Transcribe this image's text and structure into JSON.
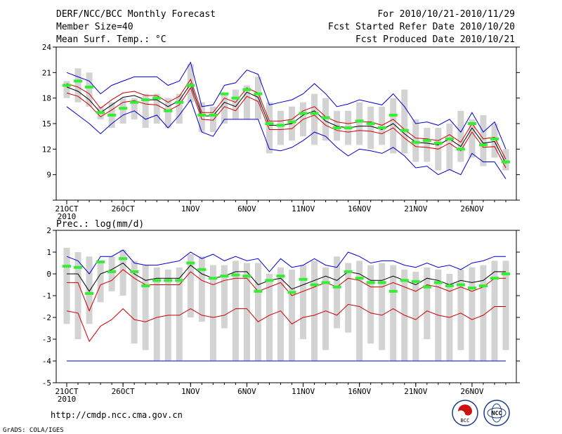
{
  "header": {
    "title": "DERF/NCC/BCC Monthly Forecast",
    "member_size": "Member Size=40",
    "variable": "Mean Surf. Temp.: °C",
    "period": "For 2010/10/21-2010/11/29",
    "started": "Fcst Started Refer Date 2010/10/20",
    "produced": "Fcst Produced Date 2010/10/21"
  },
  "footer": {
    "url": "http://cmdp.ncc.cma.gov.cn",
    "grads": "GrADS: COLA/IGES",
    "logo_bcc": "BCC",
    "logo_ncc": "NCC"
  },
  "colors": {
    "box": "#d3d3d3",
    "envelope": "#0000cc",
    "spread": "#cc0000",
    "mean": "#000000",
    "observed": "#33ee33"
  },
  "chart_data": [
    {
      "type": "line",
      "title": "Mean Surf. Temp.: °C",
      "ylim": [
        6,
        24
      ],
      "yticks": [
        6,
        9,
        12,
        15,
        18,
        21,
        24
      ],
      "ytick_labels": [
        "",
        "9",
        "12",
        "15",
        "18",
        "21",
        "24"
      ],
      "xtick_labels": [
        {
          "day": 1,
          "label": "21OCT",
          "sub": "2010"
        },
        {
          "day": 6,
          "label": "26OCT"
        },
        {
          "day": 12,
          "label": "1NOV"
        },
        {
          "day": 17,
          "label": "6NOV"
        },
        {
          "day": 22,
          "label": "11NOV"
        },
        {
          "day": 27,
          "label": "16NOV"
        },
        {
          "day": 32,
          "label": "21NOV"
        },
        {
          "day": 37,
          "label": "26NOV"
        }
      ],
      "x": [
        1,
        2,
        3,
        4,
        5,
        6,
        7,
        8,
        9,
        10,
        11,
        12,
        13,
        14,
        15,
        16,
        17,
        18,
        19,
        20,
        21,
        22,
        23,
        24,
        25,
        26,
        27,
        28,
        29,
        30,
        31,
        32,
        33,
        34,
        35,
        36,
        37,
        38,
        39,
        40
      ],
      "box_low": [
        18.0,
        17.5,
        17.0,
        15.5,
        14.5,
        15.0,
        15.5,
        14.5,
        15.0,
        14.5,
        15.0,
        17.5,
        14.0,
        14.0,
        15.0,
        15.5,
        15.5,
        15.5,
        11.5,
        12.5,
        13.0,
        13.5,
        12.5,
        13.0,
        13.0,
        12.5,
        12.5,
        12.0,
        12.5,
        11.5,
        11.5,
        10.5,
        10.5,
        9.5,
        9.5,
        10.5,
        11.0,
        10.0,
        11.0,
        9.5
      ],
      "box_high": [
        20.0,
        21.5,
        21.0,
        17.0,
        17.5,
        18.0,
        18.0,
        18.5,
        18.5,
        18.0,
        18.5,
        22.0,
        17.5,
        17.0,
        18.5,
        19.0,
        19.5,
        20.5,
        17.5,
        16.5,
        17.0,
        17.5,
        18.5,
        18.0,
        16.5,
        16.5,
        17.5,
        17.0,
        17.0,
        18.0,
        19.0,
        15.5,
        14.5,
        14.5,
        15.0,
        16.5,
        15.5,
        16.0,
        15.0,
        12.0
      ],
      "series": [
        {
          "name": "upper envelope",
          "color": "#0000cc",
          "values": [
            21.0,
            20.5,
            20.0,
            18.5,
            19.5,
            20.0,
            20.5,
            20.5,
            20.5,
            19.5,
            20.0,
            22.2,
            17.0,
            17.2,
            19.5,
            19.8,
            21.3,
            20.8,
            17.2,
            17.5,
            17.8,
            18.5,
            19.7,
            18.5,
            17.0,
            17.3,
            17.8,
            17.5,
            17.2,
            18.5,
            17.0,
            15.0,
            15.2,
            14.8,
            15.5,
            14.0,
            16.3,
            14.0,
            15.2,
            12.0
          ]
        },
        {
          "name": "upper spread",
          "color": "#cc0000",
          "values": [
            19.7,
            19.3,
            18.5,
            16.8,
            17.8,
            18.6,
            18.8,
            18.3,
            18.3,
            17.5,
            18.2,
            20.2,
            16.3,
            16.3,
            18.0,
            17.5,
            19.2,
            18.6,
            15.3,
            15.3,
            15.5,
            16.5,
            17.0,
            15.8,
            15.2,
            15.0,
            15.2,
            15.2,
            14.8,
            15.5,
            14.3,
            13.3,
            13.2,
            13.0,
            13.7,
            12.8,
            15.0,
            13.2,
            13.4,
            10.8
          ]
        },
        {
          "name": "ensemble mean",
          "color": "#000000",
          "values": [
            19.3,
            18.8,
            17.8,
            16.3,
            17.2,
            18.1,
            18.3,
            17.8,
            17.8,
            17.0,
            17.7,
            19.7,
            15.9,
            15.9,
            17.5,
            17.0,
            18.7,
            18.1,
            14.8,
            14.8,
            15.0,
            16.0,
            16.5,
            15.3,
            14.7,
            14.5,
            14.7,
            14.7,
            14.3,
            15.0,
            13.8,
            12.8,
            12.7,
            12.5,
            13.2,
            12.3,
            14.5,
            12.7,
            12.9,
            10.3
          ]
        },
        {
          "name": "lower spread",
          "color": "#cc0000",
          "values": [
            18.6,
            18.2,
            17.2,
            15.8,
            16.6,
            17.5,
            17.7,
            17.3,
            17.2,
            16.5,
            17.2,
            19.2,
            15.5,
            15.4,
            17.0,
            16.5,
            18.2,
            17.6,
            14.3,
            14.3,
            14.4,
            15.5,
            16.0,
            14.8,
            14.2,
            14.0,
            14.2,
            14.1,
            13.8,
            14.5,
            13.3,
            12.3,
            12.2,
            12.0,
            12.7,
            11.8,
            14.0,
            12.2,
            12.3,
            9.8
          ]
        },
        {
          "name": "lower envelope",
          "color": "#0000cc",
          "values": [
            17.0,
            16.0,
            15.0,
            13.8,
            15.0,
            16.0,
            16.5,
            15.5,
            16.0,
            14.5,
            16.0,
            17.8,
            14.0,
            13.5,
            15.5,
            15.5,
            15.5,
            15.5,
            12.0,
            11.8,
            12.2,
            13.0,
            14.0,
            13.5,
            12.2,
            11.2,
            12.0,
            11.8,
            11.5,
            12.2,
            11.2,
            9.8,
            10.0,
            9.0,
            9.6,
            9.0,
            11.5,
            10.5,
            10.5,
            8.5
          ]
        }
      ],
      "observed": [
        19.5,
        20.0,
        19.3,
        16.3,
        16.0,
        16.8,
        17.5,
        17.8,
        18.0,
        16.5,
        17.5,
        19.5,
        16.0,
        16.0,
        18.5,
        18.0,
        19.0,
        18.5,
        15.0,
        14.8,
        15.2,
        16.2,
        16.2,
        15.7,
        14.5,
        14.5,
        15.3,
        15.0,
        14.5,
        16.0,
        14.2,
        12.8,
        13.0,
        12.7,
        13.2,
        12.0,
        15.0,
        12.5,
        13.2,
        10.5
      ]
    },
    {
      "type": "line",
      "title": "Prec.: log(mm/d)",
      "ylim": [
        -5,
        2
      ],
      "yticks": [
        -5,
        -4,
        -3,
        -2,
        -1,
        0,
        1,
        2
      ],
      "ytick_labels": [
        "-5",
        "-4",
        "-3",
        "-2",
        "-1",
        "0",
        "1",
        "2"
      ],
      "xtick_labels": [
        {
          "day": 1,
          "label": "21OCT",
          "sub": "2010"
        },
        {
          "day": 6,
          "label": "26OCT"
        },
        {
          "day": 12,
          "label": "1NOV"
        },
        {
          "day": 17,
          "label": "6NOV"
        },
        {
          "day": 22,
          "label": "11NOV"
        },
        {
          "day": 27,
          "label": "16NOV"
        },
        {
          "day": 32,
          "label": "21NOV"
        },
        {
          "day": 37,
          "label": "26NOV"
        }
      ],
      "x": [
        1,
        2,
        3,
        4,
        5,
        6,
        7,
        8,
        9,
        10,
        11,
        12,
        13,
        14,
        15,
        16,
        17,
        18,
        19,
        20,
        21,
        22,
        23,
        24,
        25,
        26,
        27,
        28,
        29,
        30,
        31,
        32,
        33,
        34,
        35,
        36,
        37,
        38,
        39,
        40
      ],
      "box_low": [
        -2.3,
        -3.0,
        -2.3,
        -1.3,
        -0.8,
        -1.0,
        -3.2,
        -3.5,
        -4.0,
        -4.0,
        -4.0,
        -2.0,
        -2.2,
        -4.0,
        -2.5,
        -4.0,
        -4.0,
        -4.0,
        -4.0,
        -4.0,
        -4.0,
        -3.0,
        -4.0,
        -3.5,
        -2.5,
        -2.7,
        -4.0,
        -3.2,
        -3.5,
        -4.0,
        -4.0,
        -4.0,
        -3.0,
        -4.0,
        -4.0,
        -3.5,
        -4.0,
        -4.0,
        -4.0,
        -3.5
      ],
      "box_high": [
        1.2,
        1.0,
        0.8,
        0.6,
        0.8,
        1.1,
        0.6,
        0.4,
        0.3,
        0.2,
        0.3,
        0.9,
        0.8,
        0.4,
        0.4,
        0.6,
        0.5,
        0.5,
        0.0,
        0.3,
        0.2,
        0.4,
        0.6,
        0.3,
        0.8,
        0.5,
        0.6,
        0.4,
        0.5,
        0.4,
        0.2,
        0.1,
        0.3,
        0.2,
        0.0,
        0.2,
        0.3,
        0.4,
        0.6,
        0.6
      ],
      "series": [
        {
          "name": "upper envelope",
          "color": "#0000cc",
          "values": [
            0.8,
            0.6,
            0.0,
            0.8,
            0.8,
            1.1,
            0.5,
            0.4,
            0.4,
            0.5,
            0.6,
            1.0,
            0.7,
            0.9,
            0.6,
            0.8,
            0.6,
            0.7,
            0.1,
            0.7,
            0.3,
            0.4,
            0.7,
            0.4,
            0.3,
            1.0,
            0.8,
            0.5,
            0.6,
            0.6,
            0.4,
            0.3,
            0.5,
            0.3,
            0.4,
            0.2,
            0.5,
            0.6,
            0.8,
            0.8
          ]
        },
        {
          "name": "ensemble mean",
          "color": "#000000",
          "values": [
            0.0,
            0.0,
            -0.8,
            0.0,
            0.2,
            0.5,
            0.0,
            -0.3,
            -0.2,
            -0.2,
            -0.2,
            0.4,
            0.0,
            -0.2,
            -0.1,
            0.1,
            0.1,
            -0.5,
            -0.3,
            -0.2,
            -0.7,
            -0.5,
            -0.3,
            -0.1,
            -0.3,
            0.1,
            0.0,
            -0.3,
            -0.3,
            -0.1,
            -0.3,
            -0.5,
            -0.2,
            -0.3,
            -0.5,
            -0.3,
            -0.4,
            -0.3,
            0.1,
            0.1
          ]
        },
        {
          "name": "upper spread",
          "color": "#cc0000",
          "values": [
            -0.4,
            -0.4,
            -1.7,
            -0.5,
            -0.3,
            0.2,
            -0.2,
            -0.5,
            -0.5,
            -0.5,
            -0.5,
            0.1,
            -0.3,
            -0.5,
            -0.3,
            -0.2,
            -0.2,
            -0.8,
            -0.6,
            -0.4,
            -1.0,
            -0.8,
            -0.6,
            -0.4,
            -0.6,
            -0.2,
            -0.3,
            -0.6,
            -0.6,
            -0.4,
            -0.6,
            -0.8,
            -0.5,
            -0.6,
            -0.8,
            -0.6,
            -0.8,
            -0.6,
            -0.2,
            -0.2
          ]
        },
        {
          "name": "lower spread",
          "color": "#cc0000",
          "values": [
            -1.7,
            -1.8,
            -3.1,
            -2.4,
            -2.1,
            -1.6,
            -2.1,
            -2.2,
            -2.0,
            -1.9,
            -1.9,
            -1.6,
            -1.9,
            -2.0,
            -1.9,
            -1.6,
            -1.6,
            -2.2,
            -1.9,
            -1.7,
            -2.3,
            -2.0,
            -1.9,
            -1.7,
            -1.9,
            -1.4,
            -1.5,
            -1.8,
            -1.9,
            -1.6,
            -1.9,
            -2.1,
            -1.7,
            -1.9,
            -2.0,
            -1.8,
            -2.1,
            -1.9,
            -1.5,
            -1.5
          ]
        },
        {
          "name": "lower envelope",
          "color": "#0000cc",
          "values": [
            -4,
            -4,
            -4,
            -4,
            -4,
            -4,
            -4,
            -4,
            -4,
            -4,
            -4,
            -4,
            -4,
            -4,
            -4,
            -4,
            -4,
            -4,
            -4,
            -4,
            -4,
            -4,
            -4,
            -4,
            -4,
            -4,
            -4,
            -4,
            -4,
            -4,
            -4,
            -4,
            -4,
            -4,
            -4,
            -4,
            -4,
            -4,
            -4,
            -4
          ]
        }
      ],
      "observed": [
        0.35,
        0.3,
        -0.9,
        0.55,
        0.1,
        0.7,
        0.1,
        -0.55,
        -0.3,
        -0.3,
        -0.3,
        0.5,
        0.2,
        -0.2,
        -0.1,
        -0.05,
        -0.1,
        -0.8,
        -0.3,
        -0.1,
        -0.85,
        -0.25,
        -0.5,
        -0.4,
        -0.6,
        0.1,
        -0.2,
        -0.4,
        -0.4,
        -0.8,
        -0.3,
        -0.35,
        -0.6,
        -0.4,
        -0.55,
        -0.5,
        -0.65,
        -0.55,
        -0.2,
        0.0
      ]
    }
  ]
}
